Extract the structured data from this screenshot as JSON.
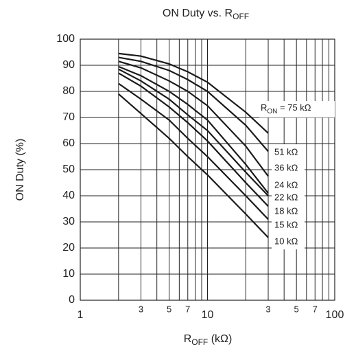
{
  "chart_data": {
    "type": "line",
    "title": [
      "ON Duty vs. R",
      "OFF"
    ],
    "x_label": [
      "R",
      "OFF",
      " (kΩ)"
    ],
    "y_label": "ON Duty (%)",
    "label_prefix": [
      "R",
      "ON",
      " = "
    ],
    "log_x": true,
    "grid": true,
    "x": [
      2,
      3,
      5,
      7,
      10,
      20,
      30
    ],
    "series": [
      {
        "name": "75 kΩ",
        "color": "#1a1a1a",
        "values": [
          94.5,
          93.5,
          90.5,
          87.5,
          83.5,
          72,
          64
        ]
      },
      {
        "name": "51 kΩ",
        "color": "#1a1a1a",
        "values": [
          93,
          91.5,
          88,
          84.5,
          80,
          67,
          57
        ]
      },
      {
        "name": "36 kΩ",
        "color": "#1a1a1a",
        "values": [
          91.5,
          89,
          84,
          80,
          74.5,
          59,
          47.5
        ]
      },
      {
        "name": "24 kΩ",
        "color": "#1a1a1a",
        "values": [
          89.5,
          86,
          80,
          75,
          69,
          52,
          41
        ]
      },
      {
        "name": "22 kΩ",
        "color": "#1a1a1a",
        "values": [
          88.5,
          84,
          77,
          71,
          65,
          49,
          40
        ]
      },
      {
        "name": "18 kΩ",
        "color": "#1a1a1a",
        "values": [
          87,
          82,
          74,
          68,
          61,
          45,
          36
        ]
      },
      {
        "name": "15 kΩ",
        "color": "#1a1a1a",
        "values": [
          83,
          77,
          69,
          62,
          55,
          40,
          31
        ]
      },
      {
        "name": "10 kΩ",
        "color": "#1a1a1a",
        "values": [
          79,
          71.5,
          62,
          55,
          48,
          33,
          24
        ]
      }
    ],
    "xlim": [
      1,
      100
    ],
    "ylim": [
      0,
      100
    ],
    "xticks": [
      1,
      3,
      5,
      7,
      10,
      {
        "value": 30,
        "label": "3"
      },
      {
        "value": 50,
        "label": "5"
      },
      {
        "value": 70,
        "label": "7"
      },
      100
    ],
    "x_minor_grid": [
      2,
      4,
      6,
      8,
      9,
      20,
      40,
      60,
      80,
      90
    ],
    "yticks": [
      0,
      10,
      20,
      30,
      40,
      50,
      60,
      70,
      80,
      90,
      100
    ]
  }
}
